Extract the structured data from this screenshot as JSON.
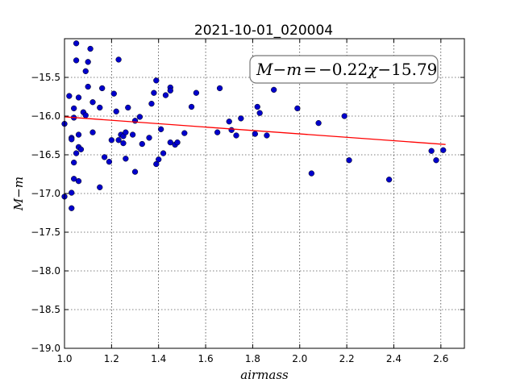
{
  "chart_data": {
    "type": "scatter",
    "title": "2021-10-01_020004",
    "xlabel": "airmass",
    "ylabel": "M−m",
    "xlim": [
      1.0,
      2.7
    ],
    "ylim": [
      -19.0,
      -15.0
    ],
    "y_inverted": true,
    "grid": true,
    "x_ticks": [
      "1.0",
      "1.2",
      "1.4",
      "1.6",
      "1.8",
      "2.0",
      "2.2",
      "2.4",
      "2.6"
    ],
    "y_ticks": [
      "−15.5",
      "−16.0",
      "−16.5",
      "−17.0",
      "−17.5",
      "−18.0",
      "−18.5",
      "−19.0"
    ],
    "annotation": {
      "lhs": "M−m",
      "equals": "=",
      "slope": "−0.22",
      "var": "χ",
      "intercept": "−15.79"
    },
    "fit_line": {
      "slope": -0.22,
      "intercept": -15.79,
      "x_range": [
        1.0,
        2.62
      ],
      "color": "#ff0000"
    },
    "point_color": "#0000cc",
    "points": [
      [
        1.0,
        -16.1
      ],
      [
        1.0,
        -17.04
      ],
      [
        1.02,
        -15.74
      ],
      [
        1.03,
        -16.28
      ],
      [
        1.03,
        -16.3
      ],
      [
        1.03,
        -16.99
      ],
      [
        1.03,
        -17.19
      ],
      [
        1.04,
        -15.9
      ],
      [
        1.04,
        -16.02
      ],
      [
        1.04,
        -16.6
      ],
      [
        1.04,
        -16.81
      ],
      [
        1.05,
        -15.06
      ],
      [
        1.05,
        -15.28
      ],
      [
        1.05,
        -16.48
      ],
      [
        1.06,
        -15.76
      ],
      [
        1.06,
        -16.24
      ],
      [
        1.06,
        -16.4
      ],
      [
        1.06,
        -16.84
      ],
      [
        1.07,
        -16.43
      ],
      [
        1.08,
        -15.95
      ],
      [
        1.09,
        -15.99
      ],
      [
        1.09,
        -15.42
      ],
      [
        1.1,
        -15.62
      ],
      [
        1.1,
        -15.3
      ],
      [
        1.11,
        -15.13
      ],
      [
        1.12,
        -15.82
      ],
      [
        1.12,
        -16.21
      ],
      [
        1.15,
        -15.89
      ],
      [
        1.15,
        -16.92
      ],
      [
        1.16,
        -15.64
      ],
      [
        1.17,
        -16.53
      ],
      [
        1.19,
        -16.59
      ],
      [
        1.2,
        -16.31
      ],
      [
        1.21,
        -15.71
      ],
      [
        1.22,
        -15.94
      ],
      [
        1.23,
        -15.27
      ],
      [
        1.23,
        -16.31
      ],
      [
        1.24,
        -16.24
      ],
      [
        1.25,
        -16.26
      ],
      [
        1.25,
        -16.35
      ],
      [
        1.26,
        -16.21
      ],
      [
        1.26,
        -16.55
      ],
      [
        1.27,
        -15.89
      ],
      [
        1.29,
        -16.24
      ],
      [
        1.3,
        -16.06
      ],
      [
        1.3,
        -16.72
      ],
      [
        1.32,
        -16.01
      ],
      [
        1.33,
        -16.36
      ],
      [
        1.36,
        -16.28
      ],
      [
        1.37,
        -15.84
      ],
      [
        1.38,
        -15.7
      ],
      [
        1.39,
        -15.54
      ],
      [
        1.39,
        -16.62
      ],
      [
        1.4,
        -16.56
      ],
      [
        1.41,
        -16.17
      ],
      [
        1.42,
        -16.48
      ],
      [
        1.43,
        -15.73
      ],
      [
        1.45,
        -15.63
      ],
      [
        1.45,
        -15.67
      ],
      [
        1.45,
        -16.34
      ],
      [
        1.47,
        -16.37
      ],
      [
        1.48,
        -16.34
      ],
      [
        1.51,
        -16.22
      ],
      [
        1.54,
        -15.88
      ],
      [
        1.56,
        -15.7
      ],
      [
        1.65,
        -16.21
      ],
      [
        1.66,
        -15.64
      ],
      [
        1.7,
        -16.07
      ],
      [
        1.71,
        -16.18
      ],
      [
        1.73,
        -16.25
      ],
      [
        1.75,
        -16.03
      ],
      [
        1.81,
        -16.23
      ],
      [
        1.82,
        -15.88
      ],
      [
        1.83,
        -15.96
      ],
      [
        1.86,
        -16.25
      ],
      [
        1.89,
        -15.66
      ],
      [
        1.99,
        -15.9
      ],
      [
        2.05,
        -16.74
      ],
      [
        2.08,
        -16.09
      ],
      [
        2.19,
        -16.0
      ],
      [
        2.21,
        -16.57
      ],
      [
        2.38,
        -16.82
      ],
      [
        2.56,
        -16.45
      ],
      [
        2.58,
        -16.57
      ],
      [
        2.61,
        -16.44
      ]
    ]
  }
}
